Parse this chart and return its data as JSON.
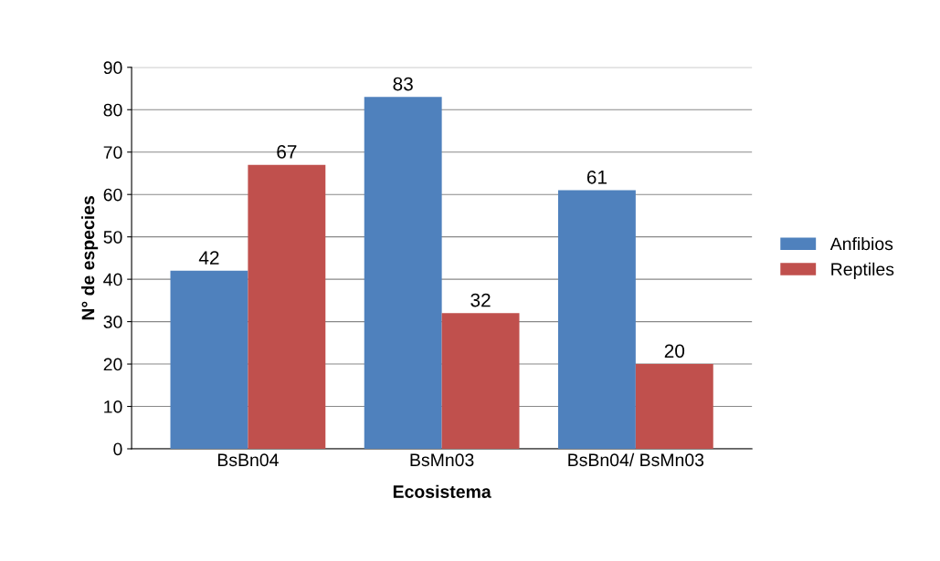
{
  "chart_data": {
    "type": "bar",
    "xlabel": "Ecosistema",
    "ylabel": "N° de especies",
    "categories": [
      "BsBn04",
      "BsMn03",
      "BsBn04/ BsMn03"
    ],
    "series": [
      {
        "name": "Anfibios",
        "color": "#4f81bd",
        "values": [
          42,
          83,
          61
        ]
      },
      {
        "name": "Reptiles",
        "color": "#c0504d",
        "values": [
          67,
          32,
          20
        ]
      }
    ],
    "ylim": [
      0,
      90
    ],
    "yticks": [
      0,
      10,
      20,
      30,
      40,
      50,
      60,
      70,
      80,
      90
    ],
    "grid": "y",
    "legend": "right",
    "data_labels": true
  }
}
